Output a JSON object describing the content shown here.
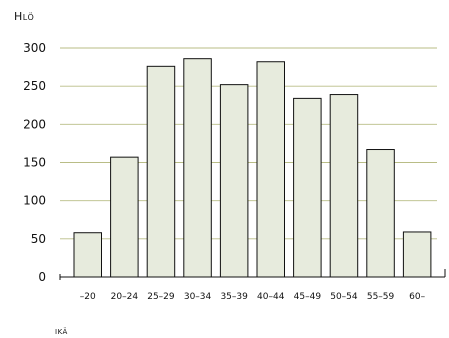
{
  "chart_data": {
    "type": "bar",
    "ylabel": "Hlö",
    "xlabel": "ikä",
    "categories": [
      "–20",
      "20–24",
      "25–29",
      "30–34",
      "35–39",
      "40–44",
      "45–49",
      "50–54",
      "55–59",
      "60–"
    ],
    "values": [
      58,
      157,
      276,
      286,
      252,
      282,
      234,
      239,
      167,
      59
    ],
    "ylim": [
      0,
      300
    ],
    "yticks": [
      0,
      50,
      100,
      150,
      200,
      250,
      300
    ],
    "grid": true,
    "colors": {
      "bar_fill": "#e7ebdd",
      "bar_stroke": "#111111",
      "grid": "#b9bd86",
      "axis": "#111111"
    }
  }
}
